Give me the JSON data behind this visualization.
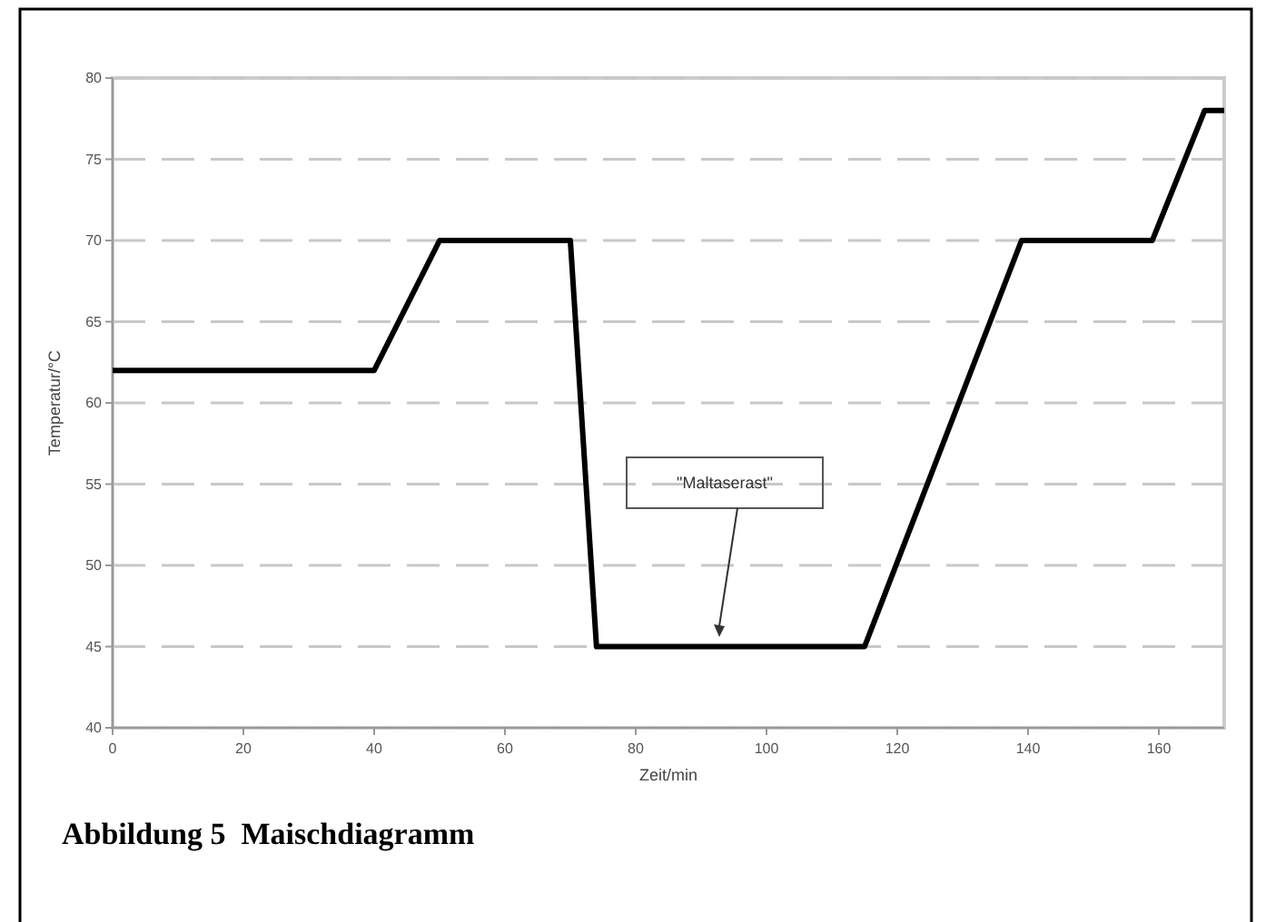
{
  "chart_data": {
    "type": "line",
    "title": "Abbildung 5  Maischdiagramm",
    "xlabel": "Zeit/min",
    "ylabel": "Temperatur/°C",
    "x": [
      0,
      40,
      50,
      70,
      74,
      115,
      139,
      159,
      167,
      170
    ],
    "series": [
      {
        "color": "#000000",
        "values": [
          62,
          62,
          70,
          70,
          45,
          45,
          70,
          70,
          78,
          78
        ]
      }
    ],
    "xlim": [
      0,
      170
    ],
    "xticks": [
      0,
      20,
      40,
      60,
      80,
      100,
      120,
      140,
      160
    ],
    "ylim": [
      40,
      80
    ],
    "yticks": [
      40,
      45,
      50,
      55,
      60,
      65,
      70,
      75,
      80
    ],
    "grid": "y",
    "line_style": "solid",
    "marker": "none",
    "annotations": [
      "\"Maltaserast\""
    ]
  }
}
